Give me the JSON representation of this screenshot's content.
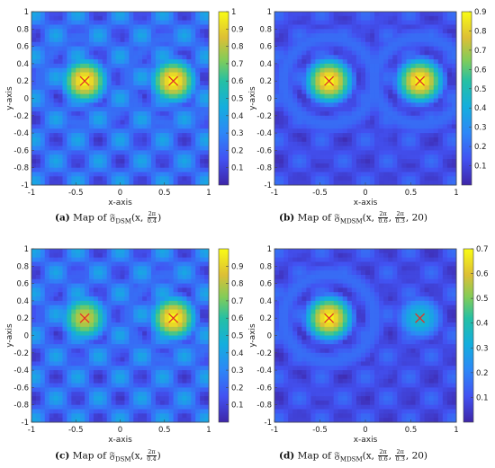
{
  "panels": [
    {
      "id": "a",
      "caption_letter": "(a)",
      "caption_map": "Map of",
      "caption_func": "𝔉",
      "caption_sub": "DSM",
      "caption_pre": "(x,",
      "caption_frac1_num": "2π",
      "caption_frac1_den": "0.4",
      "caption_frac2_num": "",
      "caption_frac2_den": "",
      "caption_post": ")",
      "xlabel": "x-axis",
      "ylabel": "y-axis",
      "colorbar_ticks": [
        "0.1",
        "0.2",
        "0.3",
        "0.4",
        "0.5",
        "0.6",
        "0.7",
        "0.8",
        "0.9",
        "1"
      ]
    },
    {
      "id": "b",
      "caption_letter": "(b)",
      "caption_map": "Map of",
      "caption_func": "𝔉",
      "caption_sub": "MDSM",
      "caption_pre": "(x,",
      "caption_frac1_num": "2π",
      "caption_frac1_den": "0.6",
      "caption_frac2_num": "2π",
      "caption_frac2_den": "0.3",
      "caption_post": ", 20)",
      "xlabel": "x-axis",
      "ylabel": "y-axis",
      "colorbar_ticks": [
        "0.1",
        "0.2",
        "0.3",
        "0.4",
        "0.5",
        "0.6",
        "0.7",
        "0.8",
        "0.9"
      ]
    },
    {
      "id": "c",
      "caption_letter": "(c)",
      "caption_map": "Map of",
      "caption_func": "𝔉",
      "caption_sub": "DSM",
      "caption_pre": "(x,",
      "caption_frac1_num": "2π",
      "caption_frac1_den": "0.4",
      "caption_frac2_num": "",
      "caption_frac2_den": "",
      "caption_post": ")",
      "xlabel": "x-axis",
      "ylabel": "y-axis",
      "colorbar_ticks": [
        "0.1",
        "0.2",
        "0.3",
        "0.4",
        "0.5",
        "0.6",
        "0.7",
        "0.8",
        "0.9"
      ]
    },
    {
      "id": "d",
      "caption_letter": "(d)",
      "caption_map": "Map of",
      "caption_func": "𝔉",
      "caption_sub": "MDSM",
      "caption_pre": "(x,",
      "caption_frac1_num": "2π",
      "caption_frac1_den": "0.6",
      "caption_frac2_num": "2π",
      "caption_frac2_den": "0.3",
      "caption_post": ", 20)",
      "xlabel": "x-axis",
      "ylabel": "y-axis",
      "colorbar_ticks": [
        "0.1",
        "0.2",
        "0.3",
        "0.4",
        "0.5",
        "0.6",
        "0.7"
      ]
    }
  ],
  "chart_data": [
    {
      "type": "heatmap",
      "panel": "a",
      "xlabel": "x-axis",
      "ylabel": "y-axis",
      "xlim": [
        -1,
        1
      ],
      "ylim": [
        -1,
        1
      ],
      "xticks": [
        "-1",
        "-0.5",
        "0",
        "0.5",
        "1"
      ],
      "yticks": [
        "-1",
        "-0.8",
        "-0.6",
        "-0.4",
        "-0.2",
        "0",
        "0.2",
        "0.4",
        "0.6",
        "0.8",
        "1"
      ],
      "colorbar_range": [
        0,
        1
      ],
      "colormap": "parula",
      "peaks": [
        {
          "x": -0.4,
          "y": 0.2,
          "value": 1.0
        },
        {
          "x": 0.6,
          "y": 0.2,
          "value": 1.0
        }
      ],
      "markers": [
        {
          "x": -0.4,
          "y": 0.2,
          "symbol": "x",
          "color": "#e0302a"
        },
        {
          "x": 0.6,
          "y": 0.2,
          "symbol": "x",
          "color": "#e0302a"
        }
      ]
    },
    {
      "type": "heatmap",
      "panel": "b",
      "xlabel": "x-axis",
      "ylabel": "y-axis",
      "xlim": [
        -1,
        1
      ],
      "ylim": [
        -1,
        1
      ],
      "xticks": [
        "-1",
        "-0.5",
        "0",
        "0.5",
        "1"
      ],
      "yticks": [
        "-1",
        "-0.8",
        "-0.6",
        "-0.4",
        "-0.2",
        "0",
        "0.2",
        "0.4",
        "0.6",
        "0.8",
        "1"
      ],
      "colorbar_range": [
        0,
        0.9
      ],
      "colormap": "parula",
      "peaks": [
        {
          "x": -0.4,
          "y": 0.2,
          "value": 0.9
        },
        {
          "x": 0.6,
          "y": 0.2,
          "value": 0.9
        }
      ],
      "markers": [
        {
          "x": -0.4,
          "y": 0.2,
          "symbol": "x",
          "color": "#e0302a"
        },
        {
          "x": 0.6,
          "y": 0.2,
          "symbol": "x",
          "color": "#e0302a"
        }
      ]
    },
    {
      "type": "heatmap",
      "panel": "c",
      "xlabel": "x-axis",
      "ylabel": "y-axis",
      "xlim": [
        -1,
        1
      ],
      "ylim": [
        -1,
        1
      ],
      "xticks": [
        "-1",
        "-0.5",
        "0",
        "0.5",
        "1"
      ],
      "yticks": [
        "-1",
        "-0.8",
        "-0.6",
        "-0.4",
        "-0.2",
        "0",
        "0.2",
        "0.4",
        "0.6",
        "0.8",
        "1"
      ],
      "colorbar_range": [
        0,
        1
      ],
      "colormap": "parula",
      "peaks": [
        {
          "x": -0.4,
          "y": 0.2,
          "value": 0.85
        },
        {
          "x": 0.6,
          "y": 0.2,
          "value": 1.0
        }
      ],
      "markers": [
        {
          "x": -0.4,
          "y": 0.2,
          "symbol": "x",
          "color": "#e0302a"
        },
        {
          "x": 0.6,
          "y": 0.2,
          "symbol": "x",
          "color": "#e0302a"
        }
      ]
    },
    {
      "type": "heatmap",
      "panel": "d",
      "xlabel": "x-axis",
      "ylabel": "y-axis",
      "xlim": [
        -1,
        1
      ],
      "ylim": [
        -1,
        1
      ],
      "xticks": [
        "-1",
        "-0.5",
        "0",
        "0.5",
        "1"
      ],
      "yticks": [
        "-1",
        "-0.8",
        "-0.6",
        "-0.4",
        "-0.2",
        "0",
        "0.2",
        "0.4",
        "0.6",
        "0.8",
        "1"
      ],
      "colorbar_range": [
        0,
        0.7
      ],
      "colormap": "parula",
      "peaks": [
        {
          "x": -0.4,
          "y": 0.2,
          "value": 0.7
        },
        {
          "x": 0.6,
          "y": 0.2,
          "value": 0.35
        }
      ],
      "markers": [
        {
          "x": -0.4,
          "y": 0.2,
          "symbol": "x",
          "color": "#e0302a"
        },
        {
          "x": 0.6,
          "y": 0.2,
          "symbol": "x",
          "color": "#e0302a"
        }
      ]
    }
  ]
}
